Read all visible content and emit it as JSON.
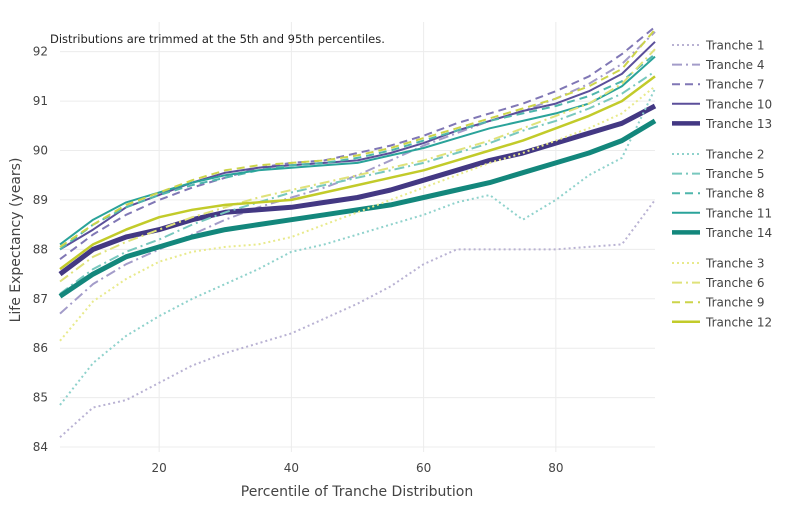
{
  "chart_data": {
    "type": "line",
    "annotation": "Distributions are trimmed at the 5th and 95th percentiles.",
    "xlabel": "Percentile of Tranche Distribution",
    "ylabel": "Life Expectancy (years)",
    "xlim": [
      5,
      95
    ],
    "ylim": [
      83.9,
      92.6
    ],
    "x_ticks": [
      20,
      40,
      60,
      80
    ],
    "y_ticks": [
      84,
      85,
      86,
      87,
      88,
      89,
      90,
      91,
      92
    ],
    "grid": true,
    "legend_position": "right",
    "x": [
      5,
      10,
      15,
      20,
      25,
      30,
      35,
      40,
      45,
      50,
      55,
      60,
      65,
      70,
      75,
      80,
      85,
      90,
      95
    ],
    "series": [
      {
        "name": "Tranche 1",
        "color": "#b9b2d3",
        "dash": "2,3",
        "width": 2,
        "group": 0,
        "values": [
          84.2,
          84.8,
          84.95,
          85.3,
          85.65,
          85.9,
          86.1,
          86.3,
          86.6,
          86.9,
          87.25,
          87.7,
          88.0,
          88.0,
          88.0,
          88.0,
          88.05,
          88.1,
          89.0
        ]
      },
      {
        "name": "Tranche 4",
        "color": "#a39cc9",
        "dash": "10,4,2,4",
        "width": 2,
        "group": 0,
        "values": [
          86.7,
          87.3,
          87.7,
          88.0,
          88.3,
          88.6,
          88.85,
          89.05,
          89.25,
          89.5,
          89.8,
          90.1,
          90.35,
          90.6,
          90.8,
          91.05,
          91.35,
          91.75,
          92.4
        ]
      },
      {
        "name": "Tranche 7",
        "color": "#8077b5",
        "dash": "8,5",
        "width": 2,
        "group": 0,
        "values": [
          87.8,
          88.3,
          88.7,
          89.0,
          89.25,
          89.45,
          89.65,
          89.75,
          89.8,
          89.95,
          90.1,
          90.3,
          90.55,
          90.75,
          90.95,
          91.2,
          91.5,
          91.95,
          92.5
        ]
      },
      {
        "name": "Tranche 10",
        "color": "#5b4f9a",
        "dash": "",
        "width": 2,
        "group": 0,
        "values": [
          88.0,
          88.4,
          88.85,
          89.1,
          89.35,
          89.55,
          89.65,
          89.7,
          89.75,
          89.8,
          89.95,
          90.15,
          90.4,
          90.6,
          90.8,
          90.95,
          91.2,
          91.55,
          92.2
        ]
      },
      {
        "name": "Tranche 13",
        "color": "#433883",
        "dash": "",
        "width": 5,
        "group": 0,
        "values": [
          87.5,
          88.0,
          88.25,
          88.4,
          88.6,
          88.75,
          88.8,
          88.85,
          88.95,
          89.05,
          89.2,
          89.4,
          89.6,
          89.8,
          89.95,
          90.15,
          90.35,
          90.55,
          90.9
        ]
      },
      {
        "name": "Tranche 2",
        "color": "#8fd2cc",
        "dash": "2,3",
        "width": 2,
        "group": 1,
        "values": [
          84.85,
          85.7,
          86.25,
          86.65,
          87.0,
          87.3,
          87.6,
          87.95,
          88.1,
          88.3,
          88.5,
          88.7,
          88.95,
          89.1,
          88.6,
          89.0,
          89.5,
          89.85,
          91.25
        ]
      },
      {
        "name": "Tranche 5",
        "color": "#78c8be",
        "dash": "10,4,2,4",
        "width": 2,
        "group": 1,
        "values": [
          87.1,
          87.6,
          87.95,
          88.2,
          88.5,
          88.75,
          88.95,
          89.15,
          89.3,
          89.45,
          89.6,
          89.75,
          89.95,
          90.15,
          90.4,
          90.6,
          90.85,
          91.15,
          91.6
        ]
      },
      {
        "name": "Tranche 8",
        "color": "#4fb6ac",
        "dash": "8,5",
        "width": 2,
        "group": 1,
        "values": [
          88.0,
          88.5,
          88.85,
          89.1,
          89.3,
          89.45,
          89.6,
          89.7,
          89.75,
          89.85,
          90.0,
          90.2,
          90.4,
          90.6,
          90.75,
          90.9,
          91.1,
          91.4,
          91.95
        ]
      },
      {
        "name": "Tranche 11",
        "color": "#2aa39a",
        "dash": "",
        "width": 2,
        "group": 1,
        "values": [
          88.1,
          88.6,
          88.95,
          89.15,
          89.35,
          89.5,
          89.6,
          89.65,
          89.7,
          89.75,
          89.9,
          90.05,
          90.25,
          90.45,
          90.6,
          90.75,
          90.95,
          91.3,
          91.9
        ]
      },
      {
        "name": "Tranche 14",
        "color": "#13877c",
        "dash": "",
        "width": 5,
        "group": 1,
        "values": [
          87.05,
          87.5,
          87.85,
          88.05,
          88.25,
          88.4,
          88.5,
          88.6,
          88.7,
          88.8,
          88.9,
          89.05,
          89.2,
          89.35,
          89.55,
          89.75,
          89.95,
          90.2,
          90.6
        ]
      },
      {
        "name": "Tranche 3",
        "color": "#e8ea8c",
        "dash": "2,3",
        "width": 2,
        "group": 2,
        "values": [
          86.15,
          86.95,
          87.4,
          87.75,
          87.95,
          88.05,
          88.1,
          88.25,
          88.5,
          88.75,
          89.0,
          89.25,
          89.5,
          89.75,
          89.95,
          90.2,
          90.45,
          90.75,
          91.3
        ]
      },
      {
        "name": "Tranche 6",
        "color": "#dfe27a",
        "dash": "10,4,2,4",
        "width": 2,
        "group": 2,
        "values": [
          87.35,
          87.85,
          88.15,
          88.4,
          88.65,
          88.85,
          89.05,
          89.2,
          89.35,
          89.5,
          89.65,
          89.8,
          90.0,
          90.2,
          90.45,
          90.7,
          90.95,
          91.35,
          92.05
        ]
      },
      {
        "name": "Tranche 9",
        "color": "#ccd44a",
        "dash": "8,5",
        "width": 2,
        "group": 2,
        "values": [
          88.05,
          88.5,
          88.9,
          89.15,
          89.4,
          89.6,
          89.7,
          89.75,
          89.8,
          89.9,
          90.05,
          90.25,
          90.45,
          90.65,
          90.85,
          91.05,
          91.3,
          91.65,
          92.45
        ]
      },
      {
        "name": "Tranche 12",
        "color": "#c2cb2a",
        "dash": "",
        "width": 2.5,
        "group": 2,
        "values": [
          87.6,
          88.1,
          88.4,
          88.65,
          88.8,
          88.9,
          88.95,
          89.0,
          89.15,
          89.3,
          89.45,
          89.6,
          89.8,
          90.0,
          90.2,
          90.45,
          90.7,
          91.0,
          91.5
        ]
      }
    ]
  }
}
